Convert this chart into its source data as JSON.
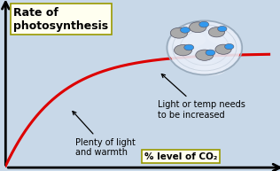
{
  "background_color": "#c8d8e8",
  "curve_color": "#dd0000",
  "curve_linewidth": 2.2,
  "title_box_text": "Rate of\nphotosynthesis",
  "title_box_bg": "#fffff0",
  "title_box_edge": "#999900",
  "xlabel_box_text": "% level of CO₂",
  "xlabel_box_bg": "#fffff0",
  "xlabel_box_edge": "#999900",
  "annotation1_text": "Plenty of light\nand warmth",
  "annotation2_text": "Light or temp needs\nto be increased",
  "blob_color": "#e8eef8",
  "blob_edge_color": "#99aabb",
  "mol_gray": "#aaaaaa",
  "mol_blue": "#3399ee",
  "mol_edge": "#555566"
}
